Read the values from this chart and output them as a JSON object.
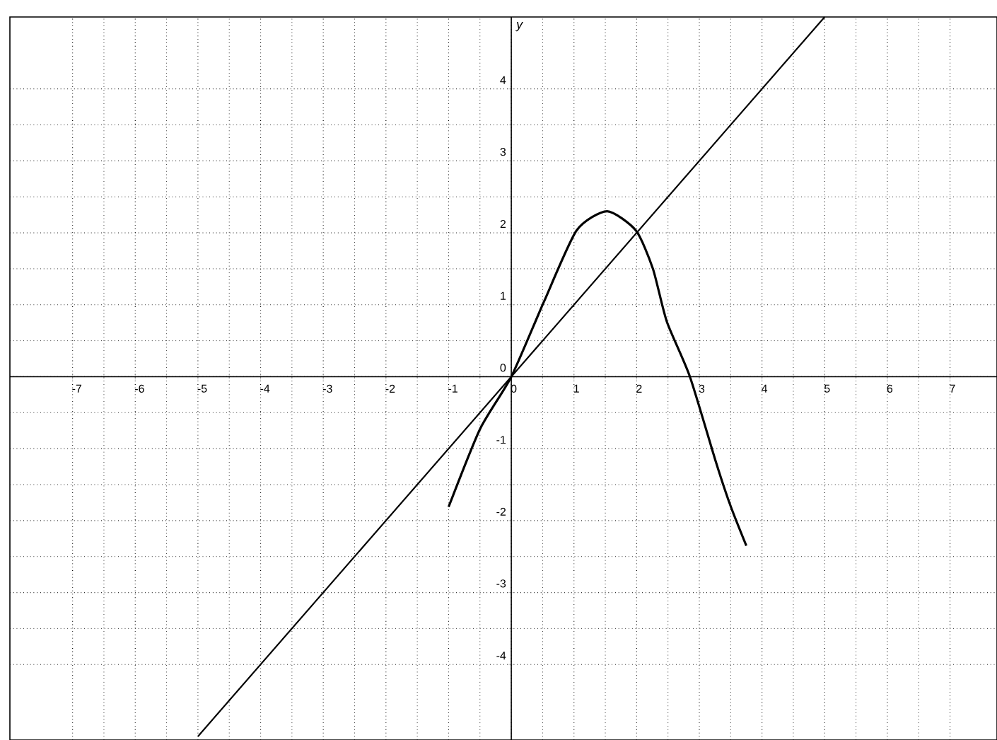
{
  "chart_data": {
    "type": "line",
    "ylabel": "y",
    "xlim": [
      -8,
      7.75
    ],
    "ylim": [
      -5.05,
      5
    ],
    "xticks": [
      -7,
      -6,
      -5,
      -4,
      -3,
      -2,
      -1,
      0,
      1,
      2,
      3,
      4,
      5,
      6,
      7
    ],
    "yticks": [
      -4,
      -3,
      -2,
      -1,
      0,
      1,
      2,
      3,
      4
    ],
    "grid": true,
    "marker": "none",
    "line_style": "solid",
    "series": [
      {
        "color": "#000000",
        "x": [
          -5,
          5
        ],
        "values": [
          -5,
          5
        ]
      },
      {
        "color": "#000000",
        "x": [
          -1,
          -0.5,
          0,
          0.52,
          1.04,
          1.53,
          1.99,
          2.26,
          2.48,
          2.85,
          3.27,
          3.5,
          3.75
        ],
        "values": [
          -1.81,
          -0.73,
          0,
          1.04,
          2.03,
          2.3,
          2.03,
          1.5,
          0.77,
          0,
          -1.2,
          -1.8,
          -2.35
        ]
      }
    ]
  }
}
